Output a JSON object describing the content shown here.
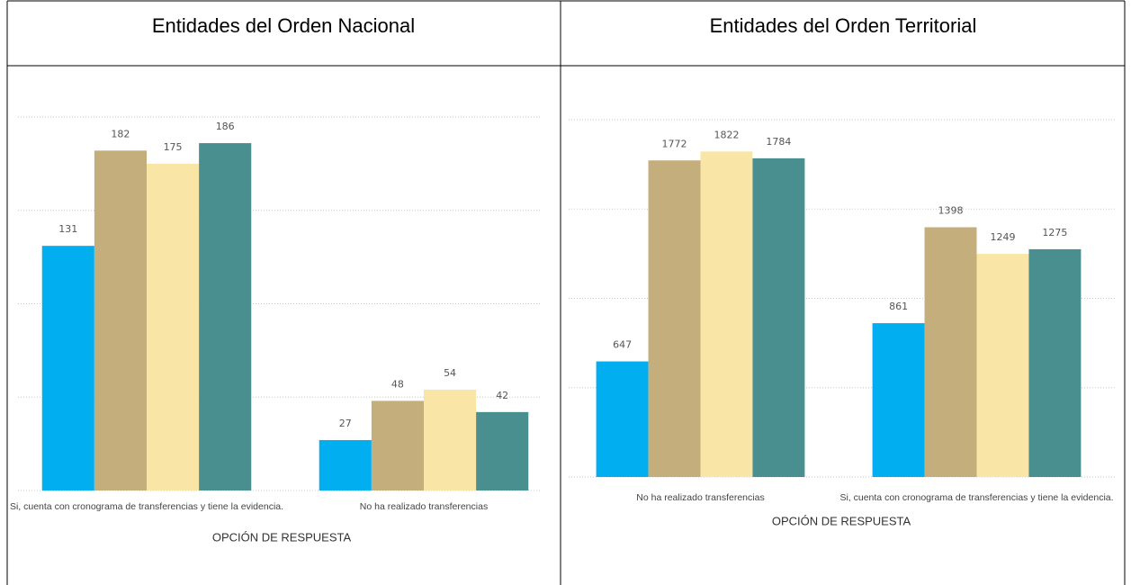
{
  "chart_data": [
    {
      "type": "bar",
      "title": "Entidades del Orden Nacional",
      "x_label": "OPCIÓN DE RESPUESTA",
      "categories": [
        "Si, cuenta con cronograma de transferencias y tiene la evidencia.",
        "No ha realizado transferencias"
      ],
      "series": [
        {
          "color": "#01aef0",
          "values": [
            131,
            27
          ]
        },
        {
          "color": "#c4ae7b",
          "values": [
            182,
            48
          ]
        },
        {
          "color": "#f9e6a7",
          "values": [
            175,
            54
          ]
        },
        {
          "color": "#4a8f8f",
          "values": [
            186,
            42
          ]
        }
      ],
      "ylim": [
        0,
        200
      ],
      "yticks": [
        0,
        50,
        100,
        150,
        200
      ],
      "grid": true
    },
    {
      "type": "bar",
      "title": "Entidades del Orden Territorial",
      "x_label": "OPCIÓN DE RESPUESTA",
      "categories": [
        "No ha realizado transferencias",
        "Si, cuenta con cronograma de transferencias y tiene la evidencia."
      ],
      "series": [
        {
          "color": "#01aef0",
          "values": [
            647,
            861
          ]
        },
        {
          "color": "#c4ae7b",
          "values": [
            1772,
            1398
          ]
        },
        {
          "color": "#f9e6a7",
          "values": [
            1822,
            1249
          ]
        },
        {
          "color": "#4a8f8f",
          "values": [
            1784,
            1275
          ]
        }
      ],
      "ylim": [
        0,
        2000
      ],
      "yticks": [
        0,
        500,
        1000,
        1500,
        2000
      ],
      "grid": true
    }
  ]
}
